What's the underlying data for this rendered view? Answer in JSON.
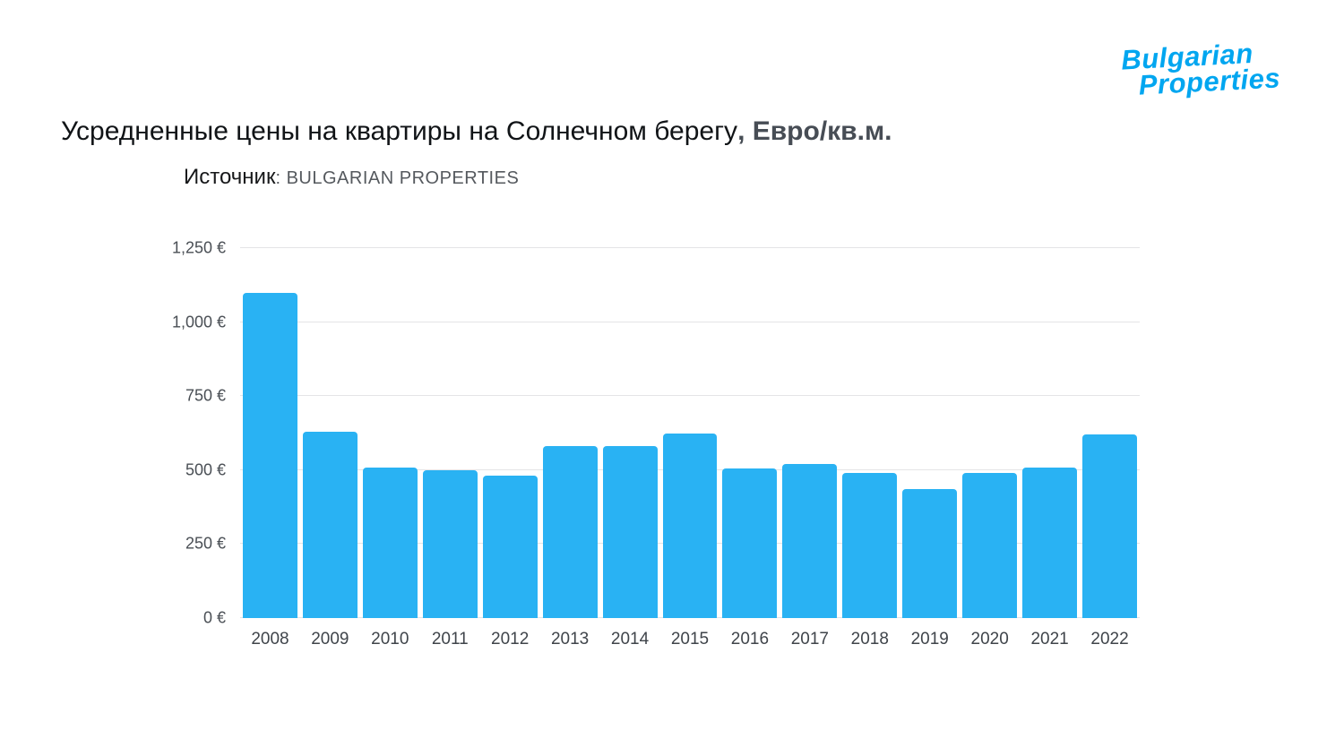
{
  "logo": {
    "line1": "Bulgarian",
    "line2": "Properties",
    "color": "#00a6f0"
  },
  "header": {
    "title": "Усредненные цены на квартиры на Солнечном берегу",
    "unit_suffix": ", Евро/кв.м.",
    "source_label": "Источник",
    "source_value": ": BULGARIAN PROPERTIES"
  },
  "chart_data": {
    "type": "bar",
    "title": "Усредненные цены на квартиры на Солнечном берегу, Евро/кв.м.",
    "source": "BULGARIAN PROPERTIES",
    "categories": [
      "2008",
      "2009",
      "2010",
      "2011",
      "2012",
      "2013",
      "2014",
      "2015",
      "2016",
      "2017",
      "2018",
      "2019",
      "2020",
      "2021",
      "2022"
    ],
    "values": [
      1100,
      630,
      510,
      500,
      480,
      580,
      580,
      625,
      505,
      520,
      490,
      435,
      490,
      510,
      620
    ],
    "xlabel": "",
    "ylabel": "",
    "ylim": [
      0,
      1250
    ],
    "yticks": [
      0,
      250,
      500,
      750,
      1000,
      1250
    ],
    "ytick_labels": [
      "0 €",
      "250 €",
      "500 €",
      "750 €",
      "1,000 €",
      "1,250 €"
    ],
    "bar_color": "#29b2f3",
    "grid": true,
    "legend": false
  }
}
